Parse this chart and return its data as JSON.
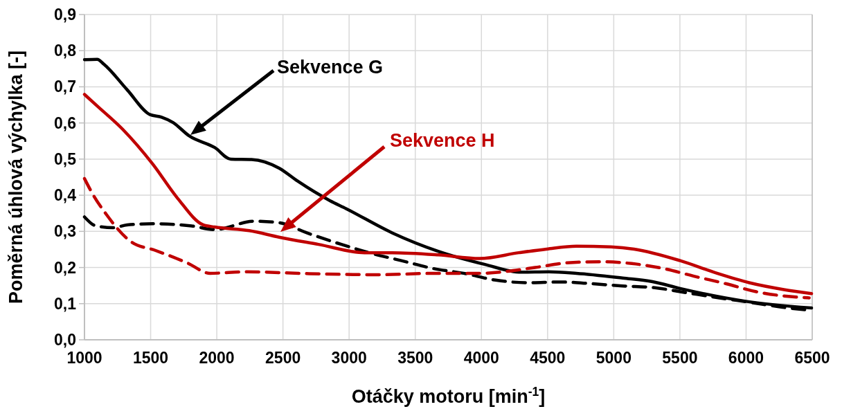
{
  "chart_data": {
    "type": "line",
    "xlabel": "Otáčky motoru [min$^{-1}$]",
    "ylabel": "Poměrná úhlová výchylka [-]",
    "xlim": [
      1000,
      6500
    ],
    "xticks": [
      1000,
      1500,
      2000,
      2500,
      3000,
      3500,
      4000,
      4500,
      5000,
      5500,
      6000,
      6500
    ],
    "ylim": [
      0,
      0.9
    ],
    "yticks": [
      {
        "value": 0,
        "label": "0,0"
      },
      {
        "value": 0.1,
        "label": "0,1"
      },
      {
        "value": 0.2,
        "label": "0,2"
      },
      {
        "value": 0.3,
        "label": "0,3"
      },
      {
        "value": 0.4,
        "label": "0,4"
      },
      {
        "value": 0.5,
        "label": "0,5"
      },
      {
        "value": 0.6,
        "label": "0,6"
      },
      {
        "value": 0.7,
        "label": "0,7"
      },
      {
        "value": 0.8,
        "label": "0,8"
      },
      {
        "value": 0.9,
        "label": "0,9"
      }
    ],
    "grid": true,
    "marker": "none",
    "annotations": [
      "Sekvence G",
      "Sekvence H"
    ],
    "series": [
      {
        "color": "#000000",
        "line_style": "solid",
        "x": [
          1000,
          1096,
          1148,
          1322,
          1496,
          1583,
          1670,
          1792,
          1984,
          2106,
          2262,
          2471,
          2611,
          2855,
          2977,
          3325,
          3673,
          4022,
          4300,
          4509,
          4718,
          5067,
          5293,
          5502,
          5990,
          6495
        ],
        "values": [
          0.775,
          0.776,
          0.762,
          0.692,
          0.623,
          0.616,
          0.601,
          0.564,
          0.532,
          0.5,
          0.499,
          0.475,
          0.439,
          0.385,
          0.363,
          0.296,
          0.245,
          0.209,
          0.187,
          0.188,
          0.184,
          0.171,
          0.161,
          0.142,
          0.107,
          0.088
        ]
      },
      {
        "color": "#000000",
        "line_style": "dashed",
        "x": [
          1000,
          1087,
          1217,
          1322,
          1514,
          1810,
          1984,
          2280,
          2471,
          2680,
          2942,
          3150,
          3395,
          3639,
          3865,
          4109,
          4352,
          4596,
          4840,
          5067,
          5311,
          5554,
          5798,
          6042,
          6277,
          6477
        ],
        "values": [
          0.34,
          0.315,
          0.31,
          0.318,
          0.321,
          0.315,
          0.305,
          0.328,
          0.324,
          0.296,
          0.264,
          0.241,
          0.219,
          0.197,
          0.184,
          0.165,
          0.158,
          0.16,
          0.155,
          0.149,
          0.144,
          0.13,
          0.116,
          0.103,
          0.09,
          0.082
        ]
      },
      {
        "color": "#c00000",
        "line_style": "solid",
        "x": [
          1000,
          1096,
          1287,
          1514,
          1705,
          1897,
          1984,
          2245,
          2471,
          2768,
          3116,
          3325,
          3673,
          3987,
          4283,
          4492,
          4718,
          4979,
          5154,
          5502,
          5781,
          6024,
          6286,
          6495
        ],
        "values": [
          0.679,
          0.647,
          0.583,
          0.487,
          0.391,
          0.318,
          0.312,
          0.302,
          0.284,
          0.264,
          0.241,
          0.241,
          0.235,
          0.225,
          0.241,
          0.251,
          0.259,
          0.257,
          0.251,
          0.219,
          0.184,
          0.158,
          0.139,
          0.128
        ]
      },
      {
        "color": "#c00000",
        "line_style": "dashed",
        "x": [
          1000,
          1061,
          1165,
          1357,
          1531,
          1775,
          1949,
          2228,
          2698,
          2959,
          3203,
          3673,
          3987,
          4405,
          4649,
          4893,
          5136,
          5380,
          5606,
          5850,
          6077,
          6320,
          6477
        ],
        "values": [
          0.446,
          0.404,
          0.347,
          0.27,
          0.248,
          0.213,
          0.184,
          0.188,
          0.183,
          0.181,
          0.18,
          0.184,
          0.184,
          0.2,
          0.213,
          0.216,
          0.211,
          0.197,
          0.176,
          0.155,
          0.133,
          0.12,
          0.116
        ]
      }
    ]
  }
}
